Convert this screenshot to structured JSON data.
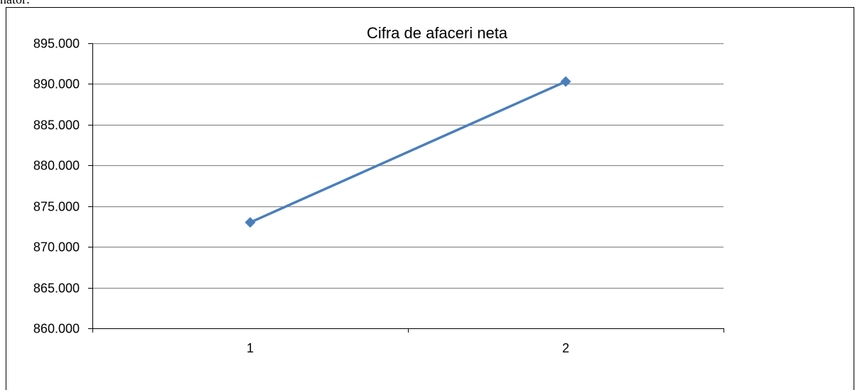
{
  "page": {
    "top_text": "nator:"
  },
  "chart_data": {
    "type": "line",
    "title": "Cifra de afaceri neta",
    "xlabel": "",
    "ylabel": "",
    "categories": [
      "1",
      "2"
    ],
    "series": [
      {
        "values": [
          873000,
          890300
        ],
        "color": "#4A7EBB",
        "marker": "diamond"
      }
    ],
    "ylim": [
      860000,
      895000
    ],
    "yticks": [
      860000,
      865000,
      870000,
      875000,
      880000,
      885000,
      890000,
      895000
    ],
    "ytick_labels": [
      "860.000",
      "865.000",
      "870.000",
      "875.000",
      "880.000",
      "885.000",
      "890.000",
      "895.000"
    ],
    "grid": true,
    "legend": "none"
  }
}
